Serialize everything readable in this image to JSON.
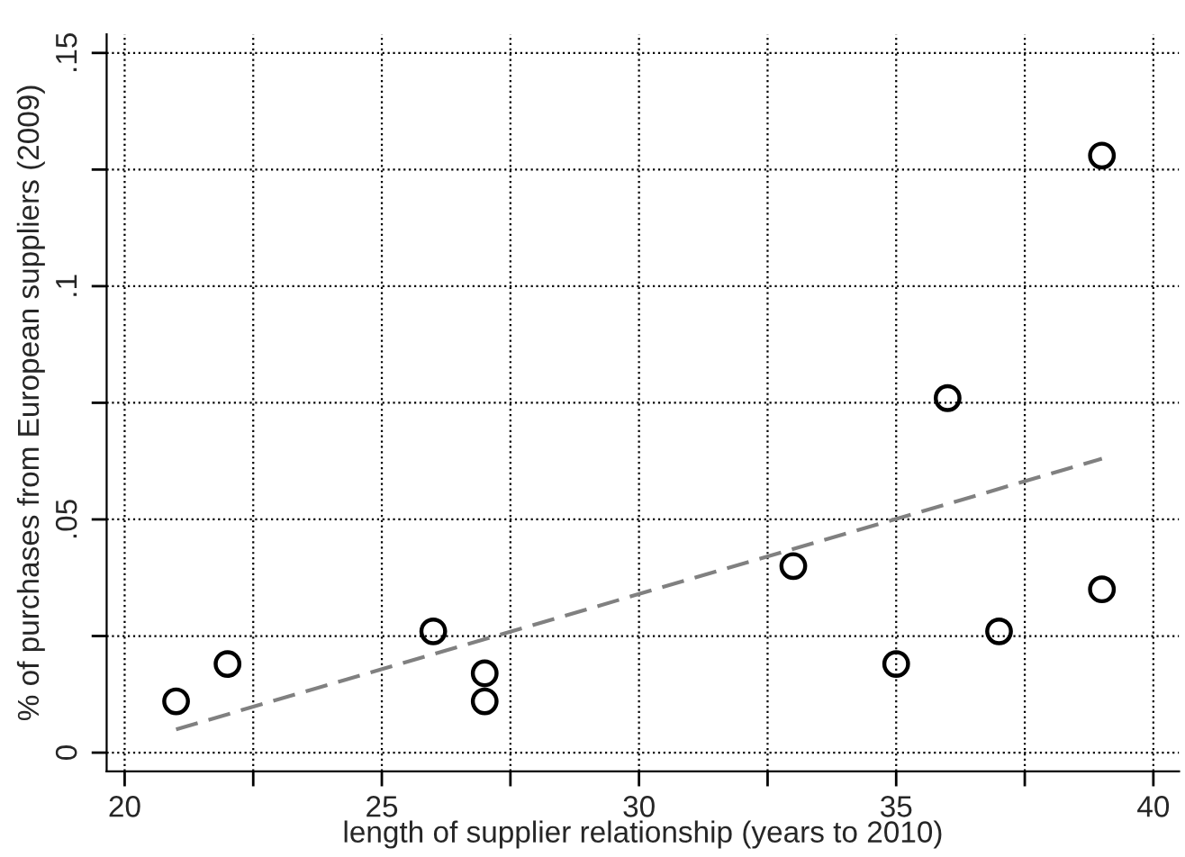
{
  "chart_data": {
    "type": "scatter",
    "xlabel": "length of supplier relationship (years to 2010)",
    "ylabel": "% of purchases from European suppliers (2009)",
    "series": [
      {
        "color": "#000000",
        "marker": "circle",
        "x": [
          21,
          22,
          26,
          27,
          27,
          33,
          35,
          36,
          37,
          39,
          39
        ],
        "values": [
          0.011,
          0.019,
          0.026,
          0.017,
          0.011,
          0.04,
          0.019,
          0.076,
          0.026,
          0.035,
          0.128
        ]
      },
      {
        "type": "line",
        "color": "#808080",
        "line_style": "dashed",
        "marker": "none",
        "x": [
          21,
          39
        ],
        "values": [
          0.005,
          0.063
        ]
      }
    ],
    "xlim": [
      19.65,
      40.5
    ],
    "ylim": [
      -0.004,
      0.154
    ],
    "xticks": [
      20,
      {
        "value": 22.5,
        "label": null
      },
      25,
      {
        "value": 27.5,
        "label": null
      },
      30,
      {
        "value": 32.5,
        "label": null
      },
      35,
      {
        "value": 37.5,
        "label": null
      },
      40
    ],
    "yticks": [
      {
        "value": 0,
        "label": "0"
      },
      {
        "value": 0.025,
        "label": null
      },
      {
        "value": 0.05,
        "label": ".05"
      },
      {
        "value": 0.075,
        "label": null
      },
      {
        "value": 0.1,
        "label": ".1"
      },
      {
        "value": 0.125,
        "label": null
      },
      {
        "value": 0.15,
        "label": ".15"
      }
    ],
    "grid": true
  }
}
